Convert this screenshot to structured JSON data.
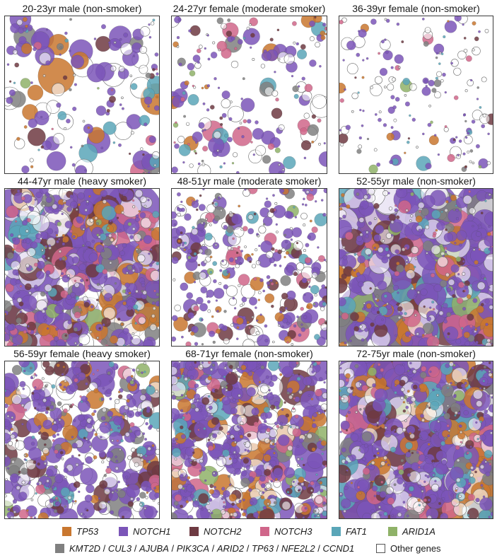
{
  "chart_data": {
    "type": "scatter",
    "description": "Packed-circle plots of mutant clones per sample",
    "colors": {
      "TP53": "#c9772f",
      "NOTCH1": "#7b55b8",
      "NOTCH2": "#6e3a42",
      "NOTCH3": "#d0668a",
      "FAT1": "#5aa6b8",
      "ARID1A": "#8fb268",
      "group": "#808080",
      "other": "#ffffff"
    },
    "legend": {
      "row1": [
        {
          "key": "TP53",
          "label": "TP53",
          "color": "#c9772f"
        },
        {
          "key": "NOTCH1",
          "label": "NOTCH1",
          "color": "#7b55b8"
        },
        {
          "key": "NOTCH2",
          "label": "NOTCH2",
          "color": "#6e3a42"
        },
        {
          "key": "NOTCH3",
          "label": "NOTCH3",
          "color": "#d0668a"
        },
        {
          "key": "FAT1",
          "label": "FAT1",
          "color": "#5aa6b8"
        },
        {
          "key": "ARID1A",
          "label": "ARID1A",
          "color": "#8fb268"
        }
      ],
      "group_genes": [
        "KMT2D",
        "CUL3",
        "AJUBA",
        "PIK3CA",
        "ARID2",
        "TP63",
        "NFE2L2",
        "CCND1"
      ],
      "group_color": "#808080",
      "other_label": "Other genes"
    },
    "panels": [
      {
        "title": "20-23yr male (non-smoker)",
        "density": 0.12,
        "max_radius": 28
      },
      {
        "title": "24-27yr female (moderate smoker)",
        "density": 0.18,
        "max_radius": 18
      },
      {
        "title": "36-39yr female (non-smoker)",
        "density": 0.14,
        "max_radius": 12
      },
      {
        "title": "44-47yr male (heavy smoker)",
        "density": 0.85,
        "max_radius": 45
      },
      {
        "title": "48-51yr male (moderate smoker)",
        "density": 0.55,
        "max_radius": 16
      },
      {
        "title": "52-55yr male (non-smoker)",
        "density": 0.7,
        "max_radius": 52
      },
      {
        "title": "56-59yr female (heavy smoker)",
        "density": 0.75,
        "max_radius": 22
      },
      {
        "title": "68-71yr female (non-smoker)",
        "density": 0.95,
        "max_radius": 28
      },
      {
        "title": "72-75yr male (non-smoker)",
        "density": 0.98,
        "max_radius": 50
      }
    ]
  }
}
